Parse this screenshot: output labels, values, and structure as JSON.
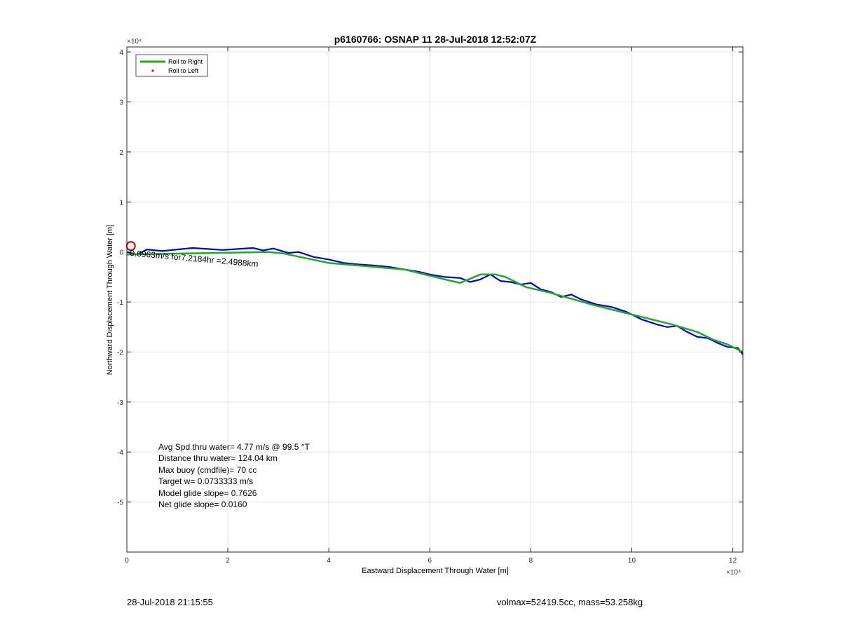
{
  "chart_data": {
    "type": "line",
    "title": "p6160766: OSNAP 11 28-Jul-2018 12:52:07Z",
    "xlabel": "Eastward Displacement Through Water [m]",
    "ylabel": "Northward Displacement Through Water [m]",
    "x_exponent_label": "×10⁴",
    "y_exponent_label": "×10⁴",
    "xlim": [
      0,
      12.2
    ],
    "ylim": [
      -6,
      4.1
    ],
    "x_scale_note": "values in units of 10^4 m",
    "xticks": [
      0,
      2,
      4,
      6,
      8,
      10,
      12
    ],
    "yticks": [
      -5,
      -4,
      -3,
      -2,
      -1,
      0,
      1,
      2,
      3,
      4
    ],
    "xtick_labels": [
      "0",
      "2",
      "4",
      "6",
      "8",
      "10",
      "12"
    ],
    "ytick_labels": [
      "-5",
      "-4",
      "-3",
      "-2",
      "-1",
      "0",
      "1",
      "2",
      "3",
      "4"
    ],
    "grid": true,
    "legend": {
      "placement": "top-left",
      "items": [
        {
          "label": "Roll to Right",
          "color": "#22aa22",
          "style": "line"
        },
        {
          "label": "Roll to Left",
          "color": "#dd0000",
          "style": "dot"
        }
      ]
    },
    "series": [
      {
        "name": "Roll to Right",
        "color": "#22aa22",
        "x": [
          0.0,
          2.8,
          3.1,
          4.0,
          5.5,
          6.3,
          6.6,
          7.0,
          7.3,
          7.5,
          7.9,
          8.4,
          9.2,
          10.0,
          10.8,
          11.3,
          11.6,
          11.9,
          12.2
        ],
        "y": [
          -0.05,
          0.0,
          -0.03,
          -0.22,
          -0.35,
          -0.55,
          -0.62,
          -0.45,
          -0.45,
          -0.5,
          -0.7,
          -0.82,
          -1.05,
          -1.25,
          -1.45,
          -1.6,
          -1.75,
          -1.85,
          -2.0
        ]
      },
      {
        "name": "",
        "color": "#0000cc",
        "x": [
          0.0,
          0.2,
          0.4,
          0.7,
          1.0,
          1.3,
          1.6,
          1.9,
          2.2,
          2.5,
          2.7,
          2.9,
          3.2,
          3.4,
          3.7,
          4.0,
          4.3,
          4.6,
          4.9,
          5.2,
          5.5,
          5.8,
          6.0,
          6.3,
          6.6,
          6.8,
          7.0,
          7.2,
          7.4,
          7.6,
          7.8,
          8.0,
          8.2,
          8.4,
          8.6,
          8.8,
          9.0,
          9.3,
          9.6,
          9.9,
          10.2,
          10.5,
          10.7,
          10.9,
          11.1,
          11.3,
          11.5,
          11.7,
          11.9,
          12.1,
          12.2
        ],
        "y": [
          0.0,
          -0.05,
          0.05,
          0.02,
          0.05,
          0.08,
          0.06,
          0.04,
          0.06,
          0.08,
          0.03,
          0.07,
          -0.02,
          0.0,
          -0.1,
          -0.15,
          -0.22,
          -0.25,
          -0.27,
          -0.3,
          -0.35,
          -0.4,
          -0.45,
          -0.5,
          -0.52,
          -0.6,
          -0.55,
          -0.45,
          -0.58,
          -0.6,
          -0.65,
          -0.62,
          -0.75,
          -0.8,
          -0.9,
          -0.85,
          -0.95,
          -1.05,
          -1.1,
          -1.2,
          -1.35,
          -1.45,
          -1.5,
          -1.48,
          -1.6,
          -1.7,
          -1.72,
          -1.82,
          -1.9,
          -1.92,
          -2.05
        ]
      }
    ],
    "markers": [
      {
        "name": "start",
        "x": 0.08,
        "y": 0.12,
        "color": "#cc0000",
        "shape": "circle"
      }
    ],
    "annotations": {
      "path_label": "0.0963m/s for7.2184hr =2.4988km",
      "stats": [
        "Avg Spd thru water=  4.77 m/s @  99.5 °T",
        "Distance thru water= 124.04 km",
        "Max buoy (cmdfile)= 70 cc",
        "Target w= 0.0733333 m/s",
        "Model glide slope= 0.7626",
        "Net glide slope= 0.0160"
      ]
    }
  },
  "footer": {
    "timestamp": "28-Jul-2018 21:15:55",
    "info": "volmax=52419.5cc, mass=53.258kg"
  }
}
